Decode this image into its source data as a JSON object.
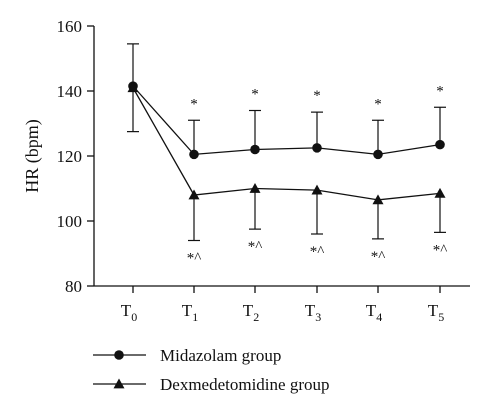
{
  "chart_data": {
    "type": "line",
    "title": "",
    "xlabel": "",
    "ylabel": "HR (bpm)",
    "ylim": [
      80,
      160
    ],
    "yticks": [
      80,
      100,
      120,
      140,
      160
    ],
    "categories": [
      {
        "base": "T",
        "sub": "0"
      },
      {
        "base": "T",
        "sub": "1"
      },
      {
        "base": "T",
        "sub": "2"
      },
      {
        "base": "T",
        "sub": "3"
      },
      {
        "base": "T",
        "sub": "4"
      },
      {
        "base": "T",
        "sub": "5"
      }
    ],
    "series": [
      {
        "name": "Midazolam group",
        "marker": "circle",
        "values": [
          141.5,
          120.5,
          122,
          122.5,
          120.5,
          123.5
        ],
        "errors": [
          13,
          10.5,
          12,
          11,
          10.5,
          11.5
        ],
        "error_direction": "up",
        "significance": [
          "",
          "*",
          "*",
          "*",
          "*",
          "*"
        ]
      },
      {
        "name": "Dexmedetomidine group",
        "marker": "triangle",
        "values": [
          141,
          108,
          110,
          109.5,
          106.5,
          108.5
        ],
        "errors": [
          13.5,
          14,
          12.5,
          13.5,
          12,
          12
        ],
        "error_direction": "down",
        "significance": [
          "",
          "*^",
          "*^",
          "*^",
          "*^",
          "*^"
        ]
      }
    ],
    "legend": "bottom-left",
    "grid": false,
    "color": "#111111"
  }
}
